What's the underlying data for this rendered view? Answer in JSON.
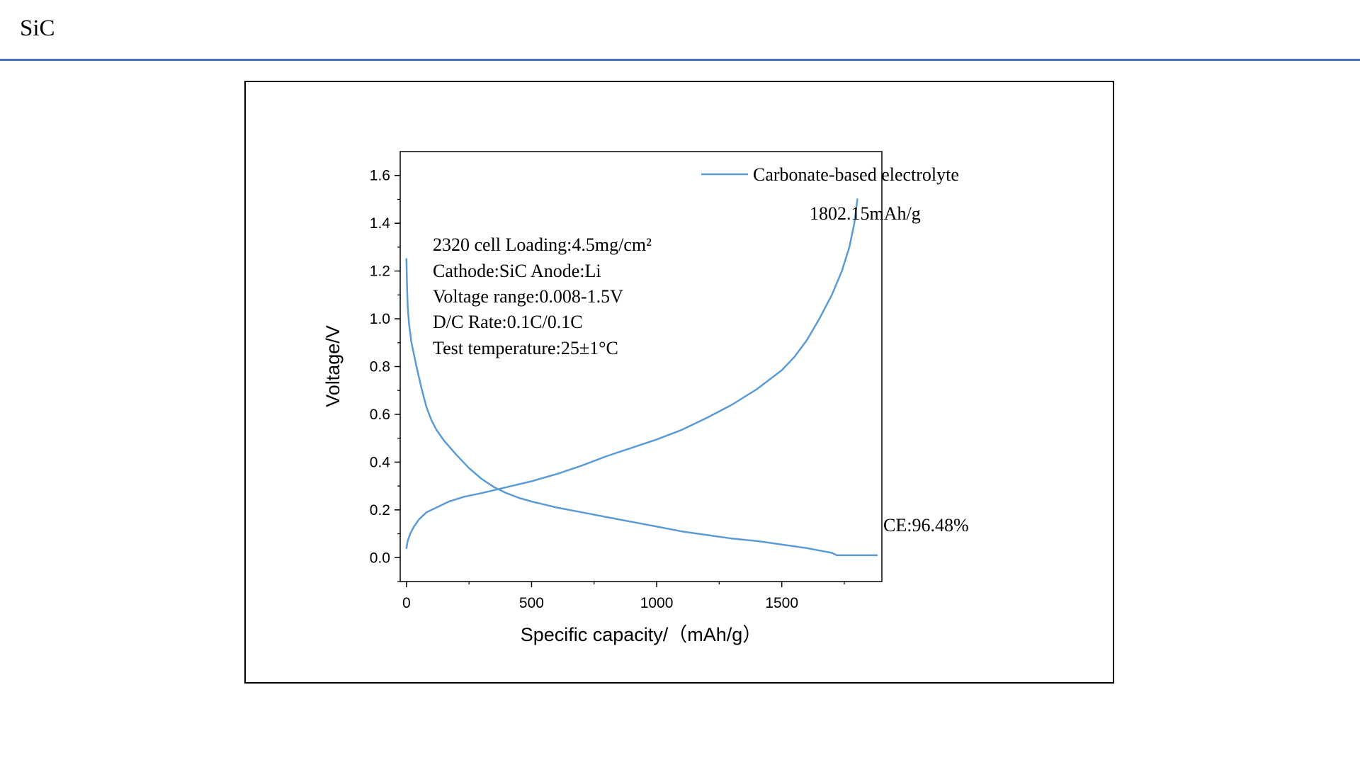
{
  "page": {
    "title": "SiC",
    "accent_color": "#4472c4"
  },
  "chart_data": {
    "type": "line",
    "xlabel": "Specific capacity/（mAh/g）",
    "ylabel": "Voltage/V",
    "xlim": [
      -25,
      1900
    ],
    "ylim": [
      -0.1,
      1.7
    ],
    "x_ticks": [
      "0",
      "500",
      "1000",
      "1500"
    ],
    "x_tick_values": [
      0,
      500,
      1000,
      1500
    ],
    "y_ticks": [
      "0.0",
      "0.2",
      "0.4",
      "0.6",
      "0.8",
      "1.0",
      "1.2",
      "1.4",
      "1.6"
    ],
    "y_tick_values": [
      0.0,
      0.2,
      0.4,
      0.6,
      0.8,
      1.0,
      1.2,
      1.4,
      1.6
    ],
    "grid": false,
    "legend": {
      "position": "top-right",
      "entries": [
        "Carbonate-based electrolyte"
      ]
    },
    "series_color": "#5b9bd5",
    "series": [
      {
        "name": "Carbonate-based electrolyte",
        "segments": [
          {
            "part": "discharge",
            "x": [
              0,
              2,
              5,
              10,
              20,
              40,
              60,
              80,
              100,
              120,
              150,
              200,
              250,
              300,
              350,
              400,
              450,
              500,
              600,
              700,
              800,
              900,
              1000,
              1100,
              1200,
              1300,
              1400,
              1500,
              1600,
              1650,
              1700,
              1720,
              1800,
              1880
            ],
            "y": [
              1.25,
              1.15,
              1.05,
              0.98,
              0.9,
              0.8,
              0.71,
              0.63,
              0.575,
              0.535,
              0.49,
              0.43,
              0.375,
              0.33,
              0.295,
              0.27,
              0.25,
              0.235,
              0.21,
              0.19,
              0.17,
              0.15,
              0.13,
              0.11,
              0.095,
              0.08,
              0.07,
              0.055,
              0.04,
              0.03,
              0.02,
              0.01,
              0.01,
              0.01
            ]
          },
          {
            "part": "charge",
            "x": [
              0,
              5,
              15,
              30,
              50,
              80,
              120,
              170,
              230,
              300,
              400,
              500,
              600,
              700,
              800,
              900,
              1000,
              1100,
              1200,
              1300,
              1400,
              1500,
              1550,
              1600,
              1650,
              1700,
              1740,
              1770,
              1790,
              1802
            ],
            "y": [
              0.04,
              0.07,
              0.1,
              0.13,
              0.16,
              0.19,
              0.21,
              0.235,
              0.255,
              0.27,
              0.295,
              0.32,
              0.35,
              0.385,
              0.425,
              0.46,
              0.495,
              0.535,
              0.585,
              0.64,
              0.705,
              0.785,
              0.84,
              0.91,
              1.0,
              1.1,
              1.2,
              1.3,
              1.4,
              1.5
            ]
          }
        ]
      }
    ],
    "annotations": {
      "cell_info": [
        "2320  cell   Loading:4.5mg/cm²",
        "Cathode:SiC   Anode:Li",
        "Voltage range:0.008-1.5V",
        "D/C Rate:0.1C/0.1C",
        "Test temperature:25±1°C"
      ],
      "capacity": "1802.15mAh/g",
      "ce": "CE:96.48%"
    }
  }
}
